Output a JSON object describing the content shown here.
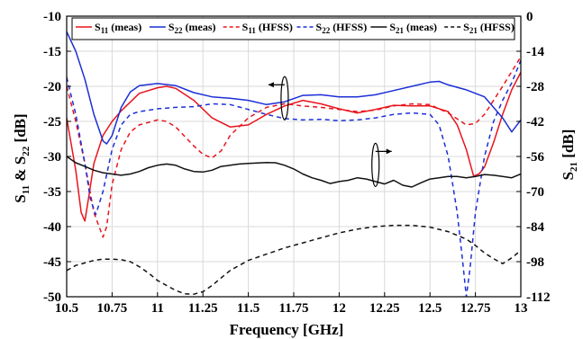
{
  "chart_data": {
    "type": "line",
    "xlabel": "Frequency [GHz]",
    "ylabel_left": {
      "main": "S",
      "sub1": "11",
      "mid": " & S",
      "sub2": "22",
      "unit": " [dB]"
    },
    "ylabel_right": {
      "main": "S",
      "sub": "21",
      "unit": " [dB]"
    },
    "xlim": [
      10.5,
      13
    ],
    "ylim_left": [
      -50,
      -10
    ],
    "ylim_right": [
      -112,
      0
    ],
    "x_ticks": [
      10.5,
      10.75,
      11,
      11.25,
      11.5,
      11.75,
      12,
      12.25,
      12.5,
      12.75,
      13
    ],
    "x_tick_labels": [
      "10.5",
      "10.75",
      "11",
      "11.25",
      "11.5",
      "11.75",
      "12",
      "12.25",
      "12.5",
      "12.75",
      "13"
    ],
    "y_left_ticks": [
      -10,
      -15,
      -20,
      -25,
      -30,
      -35,
      -40,
      -45,
      -50
    ],
    "y_left_tick_labels": [
      "-10",
      "-15",
      "-20",
      "-25",
      "-30",
      "-35",
      "-40",
      "-45",
      "-50"
    ],
    "y_right_ticks": [
      0,
      -14,
      -28,
      -42,
      -56,
      -70,
      -84,
      -98,
      -112
    ],
    "y_right_tick_labels": [
      "0",
      "-14",
      "-28",
      "-42",
      "-56",
      "-70",
      "-84",
      "-98",
      "-112"
    ],
    "grid": true,
    "legend_placement": "top",
    "series": [
      {
        "name": "S11 (meas)",
        "label": {
          "main": "S",
          "sub": "11",
          "rest": " (meas)"
        },
        "axis": "left",
        "color": "#e8141c",
        "dash": "solid",
        "x": [
          10.5,
          10.55,
          10.58,
          10.6,
          10.62,
          10.65,
          10.7,
          10.75,
          10.8,
          10.9,
          11.0,
          11.05,
          11.1,
          11.2,
          11.3,
          11.4,
          11.5,
          11.6,
          11.7,
          11.8,
          11.9,
          12.0,
          12.1,
          12.2,
          12.3,
          12.4,
          12.5,
          12.6,
          12.65,
          12.7,
          12.74,
          12.77,
          12.8,
          12.85,
          12.9,
          12.95,
          13.0
        ],
        "y": [
          -24.5,
          -32,
          -38,
          -39.2,
          -36,
          -31,
          -27,
          -25,
          -23.5,
          -21,
          -20.2,
          -20,
          -20.3,
          -22,
          -24.5,
          -25.8,
          -25.5,
          -24,
          -22.8,
          -22,
          -22.5,
          -23.2,
          -23.8,
          -23.3,
          -22.7,
          -22.8,
          -22.8,
          -23.6,
          -25.5,
          -29,
          -32.8,
          -32.5,
          -31.5,
          -28,
          -24,
          -20.5,
          -18
        ]
      },
      {
        "name": "S22 (meas)",
        "label": {
          "main": "S",
          "sub": "22",
          "rest": " (meas)"
        },
        "axis": "left",
        "color": "#1c2fd6",
        "dash": "solid",
        "x": [
          10.5,
          10.55,
          10.6,
          10.65,
          10.7,
          10.72,
          10.75,
          10.8,
          10.85,
          10.9,
          11.0,
          11.1,
          11.2,
          11.3,
          11.4,
          11.5,
          11.6,
          11.7,
          11.8,
          11.9,
          12.0,
          12.1,
          12.2,
          12.3,
          12.4,
          12.5,
          12.55,
          12.6,
          12.7,
          12.8,
          12.9,
          12.95,
          13.0
        ],
        "y": [
          -12.2,
          -15,
          -19,
          -24,
          -27.8,
          -28.2,
          -27,
          -23,
          -20.8,
          -19.9,
          -19.6,
          -19.9,
          -20.9,
          -21.5,
          -21.7,
          -22,
          -22.6,
          -22.2,
          -21.3,
          -21.2,
          -21.5,
          -21.5,
          -21.2,
          -20.6,
          -20,
          -19.4,
          -19.3,
          -19.8,
          -20.5,
          -21.5,
          -24.5,
          -26.5,
          -24.8
        ]
      },
      {
        "name": "S11 (HFSS)",
        "label": {
          "main": "S",
          "sub": "11",
          "rest": " (HFSS)"
        },
        "axis": "left",
        "color": "#e8141c",
        "dash": "dashed",
        "x": [
          10.5,
          10.55,
          10.6,
          10.65,
          10.7,
          10.72,
          10.75,
          10.8,
          10.85,
          10.9,
          11.0,
          11.05,
          11.1,
          11.2,
          11.25,
          11.3,
          11.35,
          11.4,
          11.5,
          11.6,
          11.7,
          11.8,
          11.9,
          12.0,
          12.1,
          12.2,
          12.3,
          12.4,
          12.5,
          12.6,
          12.7,
          12.75,
          12.8,
          12.9,
          13.0
        ],
        "y": [
          -20,
          -25,
          -31,
          -38,
          -41.5,
          -40,
          -34,
          -29,
          -26.5,
          -25.5,
          -24.8,
          -25,
          -25.8,
          -28.5,
          -29.7,
          -30.2,
          -29.2,
          -27,
          -24.5,
          -23,
          -22.5,
          -22.8,
          -23,
          -23.3,
          -23.6,
          -23.4,
          -22.8,
          -22.5,
          -22.6,
          -23.8,
          -25.5,
          -25.3,
          -24,
          -20,
          -15.8
        ]
      },
      {
        "name": "S22 (HFSS)",
        "label": {
          "main": "S",
          "sub": "22",
          "rest": " (HFSS)"
        },
        "axis": "left",
        "color": "#1c2fd6",
        "dash": "dashed",
        "x": [
          10.5,
          10.55,
          10.6,
          10.63,
          10.66,
          10.7,
          10.75,
          10.8,
          10.85,
          10.9,
          11.0,
          11.1,
          11.2,
          11.3,
          11.4,
          11.5,
          11.6,
          11.7,
          11.8,
          11.9,
          12.0,
          12.1,
          12.2,
          12.3,
          12.4,
          12.5,
          12.55,
          12.6,
          12.65,
          12.68,
          12.7,
          12.72,
          12.75,
          12.8,
          12.85,
          12.9,
          12.95,
          13.0
        ],
        "y": [
          -18.7,
          -24,
          -31,
          -36,
          -38.3,
          -35,
          -29,
          -25.5,
          -24,
          -23.6,
          -23.2,
          -23,
          -22.9,
          -22.5,
          -22.6,
          -23.3,
          -24,
          -24.6,
          -24.8,
          -24.7,
          -24.9,
          -24.8,
          -24.5,
          -24,
          -23.8,
          -24,
          -25.5,
          -30,
          -38,
          -45,
          -50,
          -46,
          -38,
          -30,
          -25,
          -22,
          -19.5,
          -16.3
        ]
      },
      {
        "name": "S21 (meas)",
        "label": {
          "main": "S",
          "sub": "21",
          "rest": " (meas)"
        },
        "axis": "right",
        "color": "#111111",
        "dash": "solid",
        "x": [
          10.5,
          10.55,
          10.6,
          10.65,
          10.7,
          10.75,
          10.8,
          10.85,
          10.9,
          10.95,
          11.0,
          11.05,
          11.1,
          11.15,
          11.2,
          11.25,
          11.3,
          11.35,
          11.4,
          11.45,
          11.5,
          11.55,
          11.6,
          11.65,
          11.7,
          11.75,
          11.8,
          11.85,
          11.9,
          11.95,
          12.0,
          12.05,
          12.1,
          12.15,
          12.2,
          12.25,
          12.3,
          12.35,
          12.4,
          12.45,
          12.5,
          12.55,
          12.6,
          12.65,
          12.7,
          12.75,
          12.8,
          12.85,
          12.9,
          12.95,
          13.0
        ],
        "y": [
          -56,
          -58.5,
          -60,
          -61.5,
          -62.5,
          -63,
          -63.5,
          -63,
          -62,
          -60.5,
          -59.5,
          -59,
          -59.5,
          -61,
          -62,
          -62.2,
          -61.5,
          -60,
          -59.5,
          -59,
          -58.8,
          -58.6,
          -58.4,
          -58.5,
          -59.5,
          -61,
          -63,
          -64.5,
          -65.5,
          -66.8,
          -66,
          -65.5,
          -64.5,
          -65,
          -66,
          -67,
          -65.5,
          -67.5,
          -68.2,
          -66.5,
          -65,
          -64.5,
          -64,
          -64,
          -64.5,
          -64,
          -63.2,
          -63.5,
          -64,
          -64.5,
          -63
        ]
      },
      {
        "name": "S21 (HFSS)",
        "label": {
          "main": "S",
          "sub": "21",
          "rest": " (HFSS)"
        },
        "axis": "right",
        "color": "#111111",
        "dash": "dashed",
        "x": [
          10.5,
          10.55,
          10.6,
          10.65,
          10.7,
          10.75,
          10.8,
          10.85,
          10.9,
          10.95,
          11.0,
          11.05,
          11.1,
          11.15,
          11.2,
          11.25,
          11.3,
          11.35,
          11.4,
          11.45,
          11.5,
          11.6,
          11.7,
          11.8,
          11.9,
          12.0,
          12.1,
          12.2,
          12.3,
          12.4,
          12.5,
          12.6,
          12.7,
          12.75,
          12.8,
          12.85,
          12.9,
          12.95,
          13.0
        ],
        "y": [
          -101.5,
          -99.5,
          -98.5,
          -97.5,
          -97,
          -97,
          -97.2,
          -98,
          -100,
          -102.5,
          -105.5,
          -107.5,
          -109.5,
          -110.8,
          -111,
          -110,
          -107.5,
          -104.5,
          -101.5,
          -99.5,
          -97.5,
          -95,
          -92.5,
          -90.5,
          -88.5,
          -86.5,
          -85,
          -84,
          -83.5,
          -83.5,
          -84.2,
          -86,
          -89,
          -91.5,
          -94.5,
          -96.8,
          -98.8,
          -96.5,
          -93.5
        ]
      }
    ],
    "annotations": [
      {
        "id": "left-arrow",
        "points_to": "left",
        "x": 11.7,
        "y_left": -21.7
      },
      {
        "id": "right-arrow",
        "points_to": "right",
        "x": 12.2,
        "y_left": -31.2
      }
    ]
  }
}
